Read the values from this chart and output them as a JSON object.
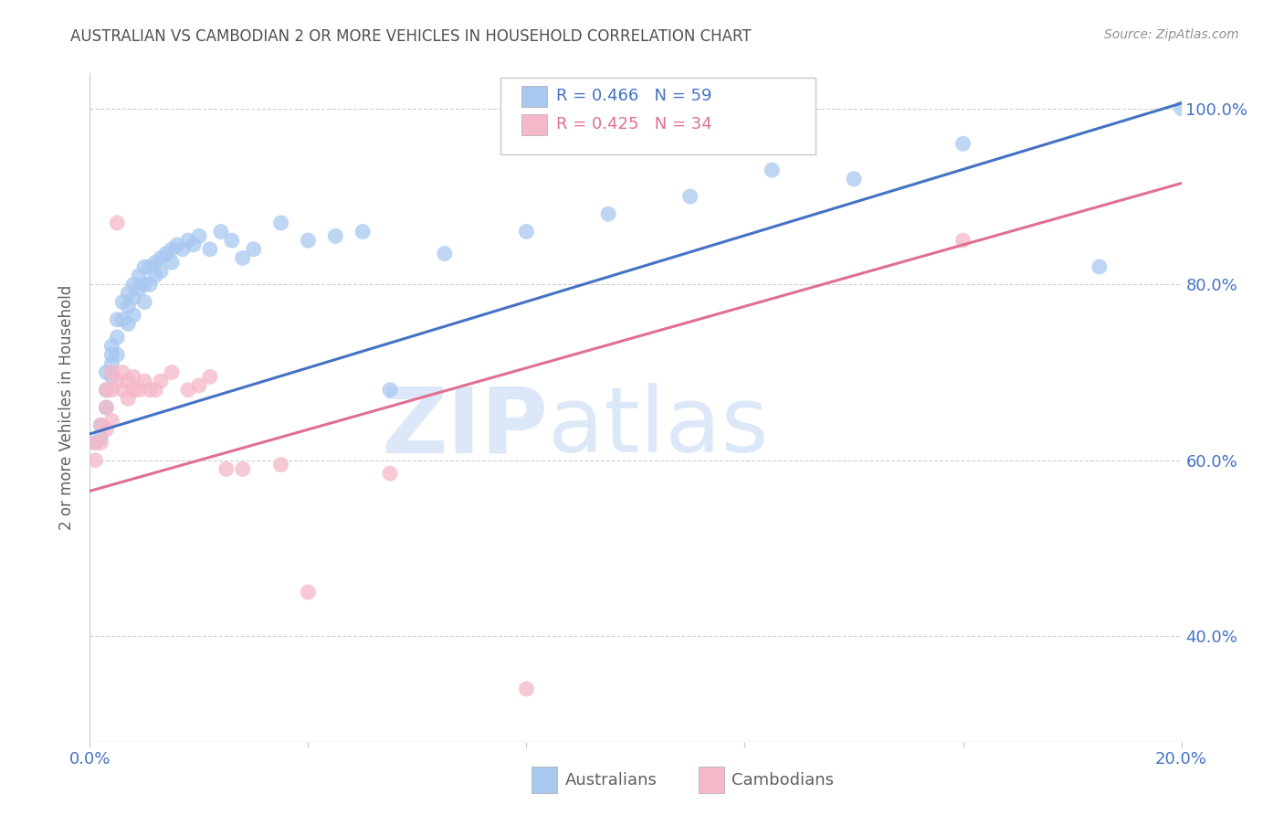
{
  "title": "AUSTRALIAN VS CAMBODIAN 2 OR MORE VEHICLES IN HOUSEHOLD CORRELATION CHART",
  "source": "Source: ZipAtlas.com",
  "ylabel": "2 or more Vehicles in Household",
  "xlim": [
    0.0,
    0.2
  ],
  "ylim": [
    0.28,
    1.04
  ],
  "xticks": [
    0.0,
    0.04,
    0.08,
    0.12,
    0.16,
    0.2
  ],
  "yticks": [
    0.4,
    0.6,
    0.8,
    1.0
  ],
  "legend_R_aus": "R = 0.466",
  "legend_N_aus": "N = 59",
  "legend_R_cam": "R = 0.425",
  "legend_N_cam": "N = 34",
  "aus_color": "#a8c8f0",
  "cam_color": "#f5b8c8",
  "aus_line_color": "#4472c4",
  "cam_line_color": "#e07090",
  "grid_color": "#d0d0d0",
  "axis_color": "#cccccc",
  "text_color": "#4472c4",
  "label_color": "#606060",
  "title_color": "#505050",
  "source_color": "#909090",
  "watermark_zip": "ZIP",
  "watermark_atlas": "atlas",
  "watermark_color": "#dce8f8",
  "aus_line_intercept": 0.63,
  "aus_line_slope": 1.88,
  "cam_line_intercept": 0.565,
  "cam_line_slope": 1.75,
  "aus_scatter_x": [
    0.001,
    0.002,
    0.002,
    0.003,
    0.003,
    0.003,
    0.004,
    0.004,
    0.004,
    0.004,
    0.005,
    0.005,
    0.005,
    0.006,
    0.006,
    0.007,
    0.007,
    0.007,
    0.008,
    0.008,
    0.008,
    0.009,
    0.009,
    0.01,
    0.01,
    0.01,
    0.011,
    0.011,
    0.012,
    0.012,
    0.013,
    0.013,
    0.014,
    0.015,
    0.015,
    0.016,
    0.017,
    0.018,
    0.019,
    0.02,
    0.022,
    0.024,
    0.026,
    0.028,
    0.03,
    0.035,
    0.04,
    0.045,
    0.05,
    0.055,
    0.065,
    0.08,
    0.095,
    0.11,
    0.125,
    0.14,
    0.16,
    0.185,
    0.2
  ],
  "aus_scatter_y": [
    0.62,
    0.64,
    0.625,
    0.7,
    0.68,
    0.66,
    0.73,
    0.72,
    0.71,
    0.695,
    0.76,
    0.74,
    0.72,
    0.78,
    0.76,
    0.79,
    0.775,
    0.755,
    0.8,
    0.785,
    0.765,
    0.81,
    0.795,
    0.82,
    0.8,
    0.78,
    0.82,
    0.8,
    0.825,
    0.81,
    0.83,
    0.815,
    0.835,
    0.84,
    0.825,
    0.845,
    0.84,
    0.85,
    0.845,
    0.855,
    0.84,
    0.86,
    0.85,
    0.83,
    0.84,
    0.87,
    0.85,
    0.855,
    0.86,
    0.68,
    0.835,
    0.86,
    0.88,
    0.9,
    0.93,
    0.92,
    0.96,
    0.82,
    1.0
  ],
  "cam_scatter_x": [
    0.001,
    0.001,
    0.002,
    0.002,
    0.003,
    0.003,
    0.003,
    0.004,
    0.004,
    0.004,
    0.005,
    0.005,
    0.006,
    0.006,
    0.007,
    0.007,
    0.008,
    0.008,
    0.009,
    0.01,
    0.011,
    0.012,
    0.013,
    0.015,
    0.018,
    0.02,
    0.022,
    0.025,
    0.028,
    0.035,
    0.04,
    0.055,
    0.08,
    0.16
  ],
  "cam_scatter_y": [
    0.62,
    0.6,
    0.64,
    0.62,
    0.635,
    0.68,
    0.66,
    0.645,
    0.7,
    0.68,
    0.87,
    0.69,
    0.68,
    0.7,
    0.67,
    0.69,
    0.695,
    0.68,
    0.68,
    0.69,
    0.68,
    0.68,
    0.69,
    0.7,
    0.68,
    0.685,
    0.695,
    0.59,
    0.59,
    0.595,
    0.45,
    0.585,
    0.34,
    0.85
  ]
}
